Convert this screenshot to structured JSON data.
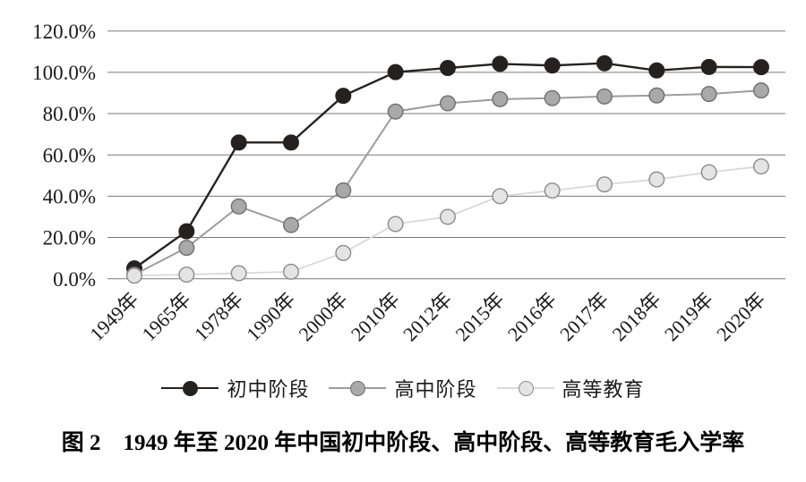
{
  "figure": {
    "caption": "图 2　1949 年至 2020 年中国初中阶段、高中阶段、高等教育毛入学率"
  },
  "chart_data": {
    "type": "line",
    "title": "1949年至2020年中国初中阶段、高中阶段、高等教育毛入学率",
    "xlabel": "",
    "ylabel": "",
    "categories": [
      "1949年",
      "1965年",
      "1978年",
      "1990年",
      "2000年",
      "2010年",
      "2012年",
      "2015年",
      "2016年",
      "2017年",
      "2018年",
      "2019年",
      "2020年"
    ],
    "series": [
      {
        "name": "初中阶段",
        "values": [
          5.0,
          23.0,
          66.0,
          66.0,
          88.6,
          100.1,
          102.1,
          104.1,
          103.3,
          104.4,
          100.9,
          102.6,
          102.5
        ],
        "color": "#262120",
        "marker_fill": "#262120",
        "marker_stroke": "#262120",
        "line_width": 2.4
      },
      {
        "name": "高中阶段",
        "values": [
          2.0,
          15.0,
          35.0,
          26.0,
          42.8,
          81.0,
          85.0,
          87.0,
          87.5,
          88.3,
          88.8,
          89.5,
          91.2
        ],
        "color": "#9d9d9d",
        "marker_fill": "#a9a9a9",
        "marker_stroke": "#6f6f6f",
        "line_width": 2.0
      },
      {
        "name": "高等教育",
        "values": [
          1.5,
          2.0,
          2.7,
          3.4,
          12.5,
          26.5,
          30.0,
          40.0,
          42.7,
          45.7,
          48.1,
          51.6,
          54.4
        ],
        "color": "#d9d9d9",
        "marker_fill": "#e4e4e4",
        "marker_stroke": "#8c8c8c",
        "line_width": 1.8
      }
    ],
    "ylim": [
      0,
      120
    ],
    "ytick_step": 20,
    "ytick_labels": [
      "0.0%",
      "20.0%",
      "40.0%",
      "60.0%",
      "80.0%",
      "100.0%",
      "120.0%"
    ],
    "grid": "horizontal",
    "gridline_color": "#7a7a7a",
    "legend_position": "bottom"
  }
}
